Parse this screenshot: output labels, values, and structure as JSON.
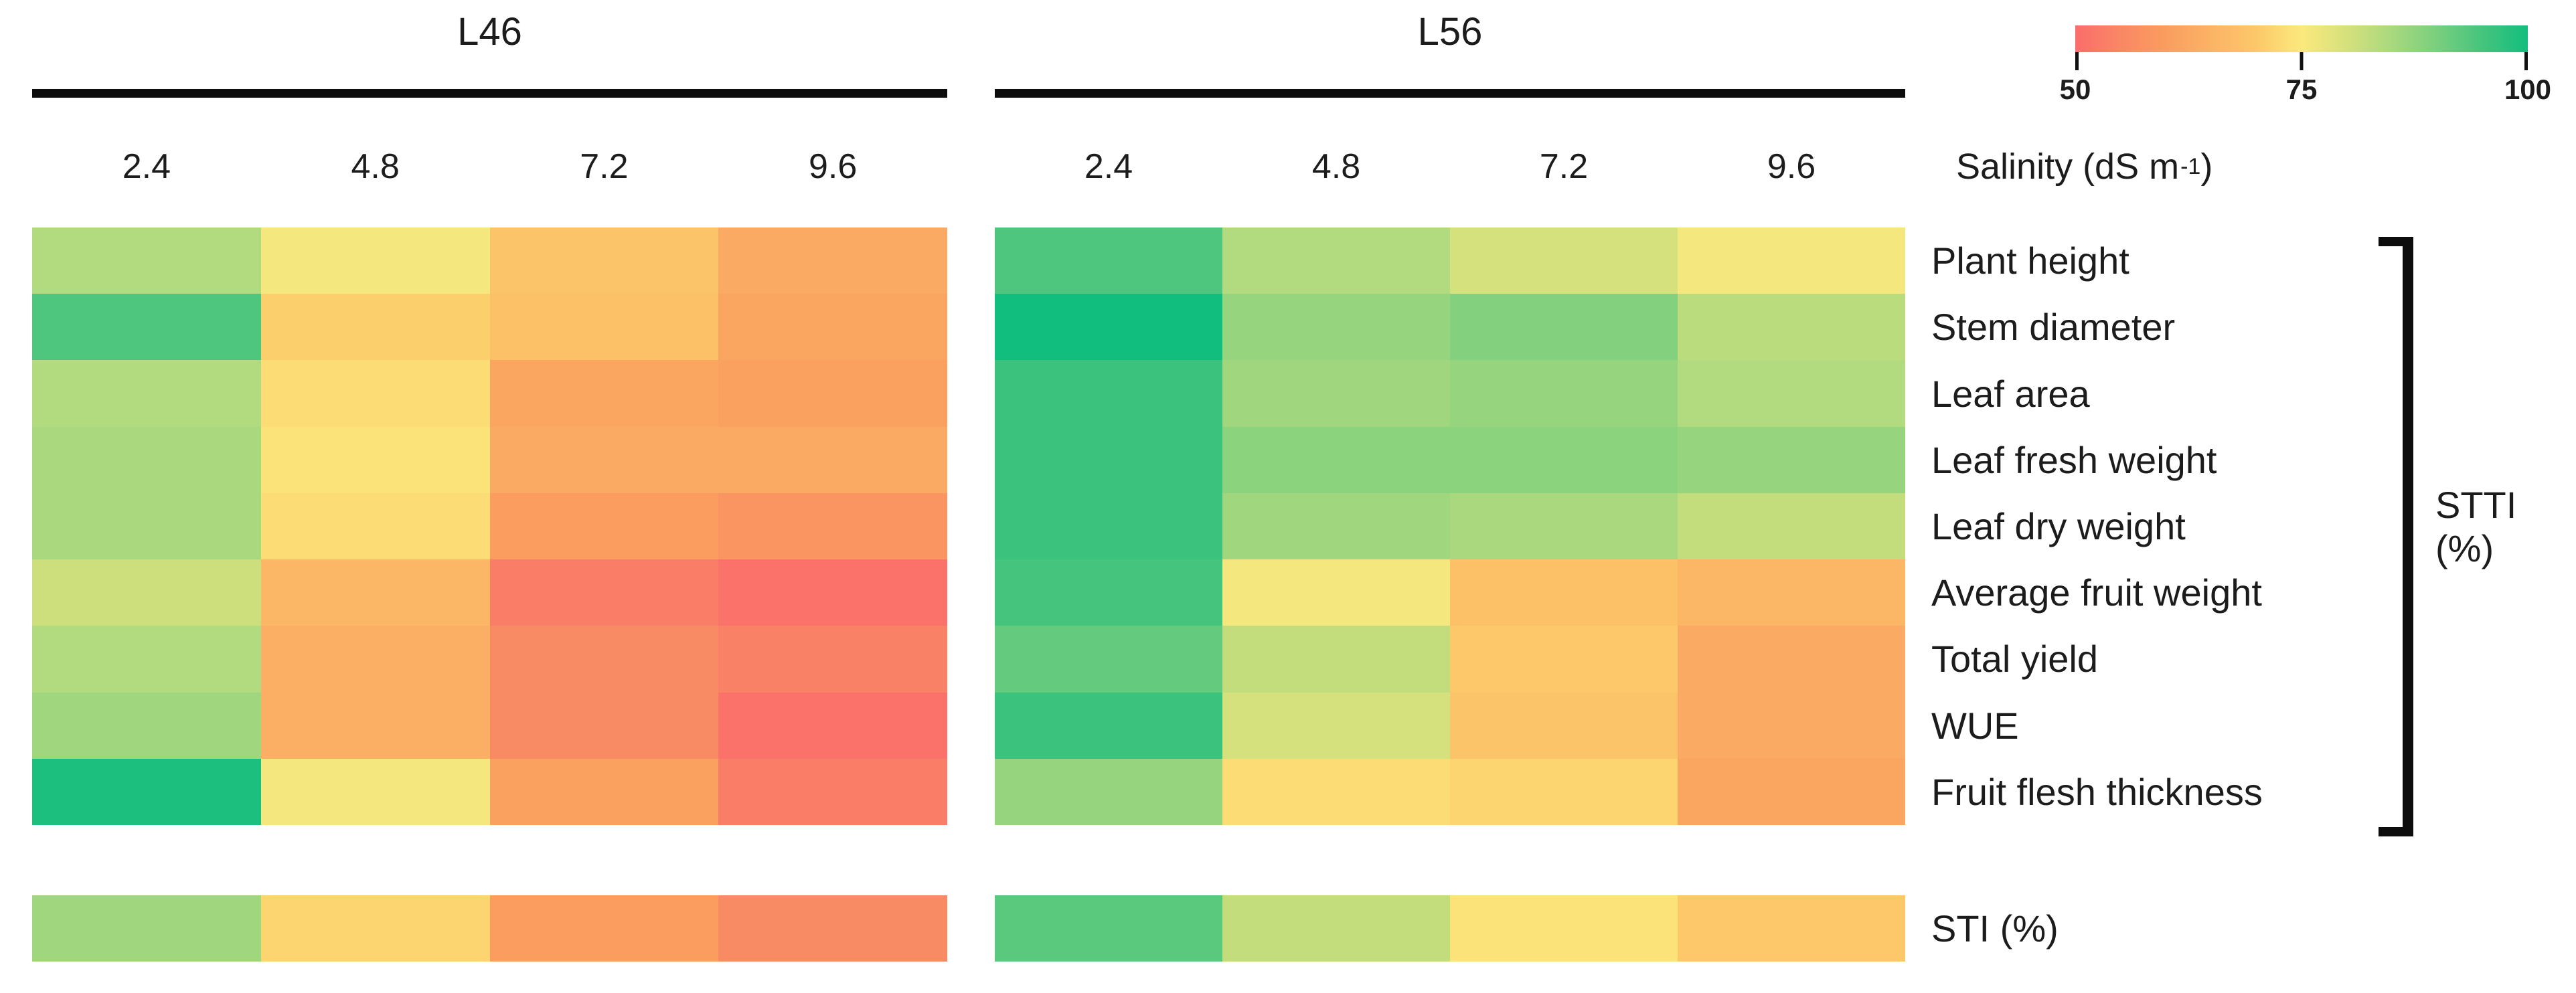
{
  "chart_data": {
    "type": "heatmap",
    "panels": [
      {
        "title": "L46",
        "salinity_levels": [
          2.4,
          4.8,
          7.2,
          9.6
        ],
        "stti_values": [
          [
            84,
            76,
            69,
            63
          ],
          [
            94,
            71,
            68,
            62
          ],
          [
            84,
            73,
            62,
            61
          ],
          [
            85,
            74,
            63,
            63
          ],
          [
            85,
            73,
            60,
            58
          ],
          [
            81,
            66,
            53,
            51
          ],
          [
            84,
            64,
            56,
            54
          ],
          [
            86,
            64,
            56,
            51
          ],
          [
            99,
            76,
            61,
            53
          ]
        ],
        "sti_values": [
          86,
          72,
          60,
          56
        ]
      },
      {
        "title": "L56",
        "salinity_levels": [
          2.4,
          4.8,
          7.2,
          9.6
        ],
        "stti_values": [
          [
            94,
            84,
            80,
            76
          ],
          [
            100,
            87,
            89,
            83
          ],
          [
            96,
            86,
            87,
            84
          ],
          [
            96,
            88,
            88,
            87
          ],
          [
            96,
            86,
            85,
            82
          ],
          [
            95,
            76,
            68,
            66
          ],
          [
            92,
            82,
            70,
            63
          ],
          [
            96,
            80,
            69,
            63
          ],
          [
            87,
            73,
            72,
            62
          ]
        ],
        "sti_values": [
          93,
          82,
          74,
          70
        ]
      }
    ],
    "row_labels": [
      "Plant height",
      "Stem diameter",
      "Leaf area",
      "Leaf fresh weight",
      "Leaf dry weight",
      "Average fruit weight",
      "Total yield",
      "WUE",
      "Fruit flesh thickness"
    ],
    "row_group_label": "STTI (%)",
    "sti_row_label": "STI (%)",
    "salinity_axis": {
      "prefix": "Salinity (dS m",
      "sup": "-1",
      "suffix": ")"
    },
    "colorbar": {
      "tick_labels": [
        "50",
        "75",
        "100"
      ],
      "value_range": [
        50,
        100
      ],
      "color_ramp": [
        {
          "value": 50,
          "color": "#FB6D6B"
        },
        {
          "value": 55,
          "color": "#F98765"
        },
        {
          "value": 60,
          "color": "#FA9D5F"
        },
        {
          "value": 65,
          "color": "#FBB365"
        },
        {
          "value": 70,
          "color": "#FCC869"
        },
        {
          "value": 75,
          "color": "#FBE97D"
        },
        {
          "value": 80,
          "color": "#D5E17C"
        },
        {
          "value": 85,
          "color": "#A9D87E"
        },
        {
          "value": 90,
          "color": "#79CF7E"
        },
        {
          "value": 95,
          "color": "#45C47D"
        },
        {
          "value": 100,
          "color": "#12BE7E"
        }
      ]
    }
  }
}
